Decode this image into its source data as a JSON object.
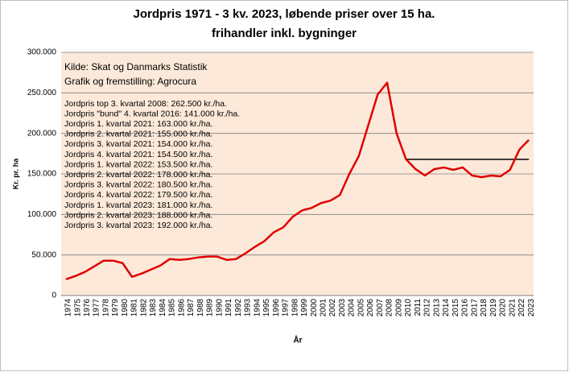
{
  "chart_data": {
    "type": "line",
    "title": "Jordpris 1971 - 3 kv. 2023, løbende priser over 15 ha.",
    "subtitle": "frihandler inkl. bygninger",
    "y_label": "Kr. pr. ha",
    "x_label": "År",
    "categories": [
      "1974",
      "1975",
      "1976",
      "1977",
      "1978",
      "1979",
      "1980",
      "1981",
      "1982",
      "1983",
      "1984",
      "1985",
      "1986",
      "1987",
      "1988",
      "1989",
      "1990",
      "1991",
      "1992",
      "1993",
      "1994",
      "1995",
      "1996",
      "1997",
      "1998",
      "1999",
      "2000",
      "2001",
      "2002",
      "2003",
      "2004",
      "2005",
      "2006",
      "2007",
      "2008",
      "2009",
      "2010",
      "2011",
      "2012",
      "2013",
      "2014",
      "2015",
      "2016",
      "2017",
      "2018",
      "2019",
      "2020",
      "2021",
      "2022",
      "2023"
    ],
    "series": [
      {
        "name": "Jordpris",
        "color": "#e00000",
        "values": [
          20000,
          24000,
          29000,
          36000,
          43000,
          43000,
          40000,
          23000,
          27000,
          32000,
          37000,
          45000,
          44000,
          45000,
          47000,
          48000,
          48000,
          44000,
          45000,
          52000,
          60000,
          67000,
          78000,
          84000,
          97000,
          105000,
          108000,
          114000,
          117000,
          124000,
          150000,
          172000,
          210000,
          248000,
          262500,
          200000,
          168000,
          156000,
          148000,
          156000,
          158000,
          155000,
          158000,
          148000,
          146000,
          148000,
          147000,
          155000,
          180000,
          192000
        ]
      }
    ],
    "reference_line": {
      "value": 168000,
      "from": "2010",
      "to": "2023",
      "color": "#000000"
    },
    "ylim": [
      0,
      300000
    ],
    "yticks": [
      0,
      {
        "value": 50000,
        "label": "50.000"
      },
      {
        "value": 100000,
        "label": "100.000"
      },
      {
        "value": 150000,
        "label": "150.000"
      },
      {
        "value": 200000,
        "label": "200.000"
      },
      {
        "value": 250000,
        "label": "250.000"
      },
      {
        "value": 300000,
        "label": "300.000"
      }
    ],
    "grid": true,
    "plot_background": "#fde9d9",
    "notes": [
      "Kilde: Skat og Danmarks Statistik",
      "Grafik og fremstilling: Agrocura"
    ],
    "annotations": [
      "Jordpris top 3. kvartal 2008: 262.500 kr./ha.",
      "Jordpris \"bund\" 4. kvartal 2016: 141.000 kr./ha.",
      "Jordpris 1. kvartal 2021: 163.000 kr./ha.",
      "Jordpris 2. kvartal 2021: 155.000 kr./ha.",
      "Jordpris 3. kvartal 2021: 154.000 kr./ha.",
      "Jordpris 4. kvartal 2021: 154.500 kr./ha.",
      "Jordpris 1. kvartal 2022: 153.500 kr./ha.",
      "Jordpris 2. kvartal 2022: 178.000 kr./ha.",
      "Jordpris 3. kvartal 2022: 180.500 kr./ha.",
      "Jordpris 4. kvartal 2022: 179.500 kr./ha.",
      "Jordpris 1. kvartal 2023: 181.000 kr./ha.",
      "Jordpris 2. kvartal 2023: 188.000 kr./ha.",
      "Jordpris 3. kvartal 2023: 192.000 kr./ha."
    ]
  }
}
